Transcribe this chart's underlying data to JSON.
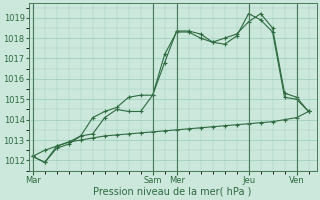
{
  "bg_color": "#cce8dc",
  "grid_color": "#99ccbb",
  "line_color": "#2d6a3f",
  "xlabel": "Pression niveau de la mer( hPa )",
  "xlabel_color": "#2d6a3f",
  "ylim": [
    1011.5,
    1019.7
  ],
  "yticks": [
    1012,
    1013,
    1014,
    1015,
    1016,
    1017,
    1018,
    1019
  ],
  "xtick_labels": [
    "Mar",
    "Sam",
    "Mer",
    "Jeu",
    "Ven"
  ],
  "xtick_positions": [
    0,
    30,
    36,
    54,
    66
  ],
  "vline_positions": [
    0,
    30,
    36,
    54,
    66
  ],
  "total_points": 72,
  "series1_x": [
    0,
    3,
    6,
    9,
    12,
    15,
    18,
    21,
    24,
    27,
    30,
    33,
    36,
    39,
    42,
    45,
    48,
    51,
    54,
    57,
    60,
    63,
    66,
    69
  ],
  "series1_y": [
    1012.2,
    1011.9,
    1012.6,
    1012.8,
    1013.2,
    1013.3,
    1014.1,
    1014.5,
    1014.4,
    1014.4,
    1015.2,
    1017.2,
    1018.3,
    1018.3,
    1018.0,
    1017.8,
    1017.7,
    1018.1,
    1019.2,
    1018.9,
    1018.3,
    1015.1,
    1015.0,
    1014.4
  ],
  "series2_x": [
    0,
    3,
    6,
    9,
    12,
    15,
    18,
    21,
    24,
    27,
    30,
    33,
    36,
    39,
    42,
    45,
    48,
    51,
    54,
    57,
    60,
    63,
    66,
    69
  ],
  "series2_y": [
    1012.2,
    1011.9,
    1012.7,
    1012.9,
    1013.2,
    1014.1,
    1014.4,
    1014.6,
    1015.1,
    1015.2,
    1015.2,
    1016.8,
    1018.35,
    1018.35,
    1018.2,
    1017.8,
    1018.0,
    1018.2,
    1018.8,
    1019.2,
    1018.5,
    1015.3,
    1015.1,
    1014.4
  ],
  "series3_x": [
    0,
    3,
    6,
    9,
    12,
    15,
    18,
    21,
    24,
    27,
    30,
    33,
    36,
    39,
    42,
    45,
    48,
    51,
    54,
    57,
    60,
    63,
    66,
    69
  ],
  "series3_y": [
    1012.2,
    1012.5,
    1012.7,
    1012.9,
    1013.0,
    1013.1,
    1013.2,
    1013.25,
    1013.3,
    1013.35,
    1013.4,
    1013.45,
    1013.5,
    1013.55,
    1013.6,
    1013.65,
    1013.7,
    1013.75,
    1013.8,
    1013.85,
    1013.9,
    1014.0,
    1014.1,
    1014.4
  ]
}
